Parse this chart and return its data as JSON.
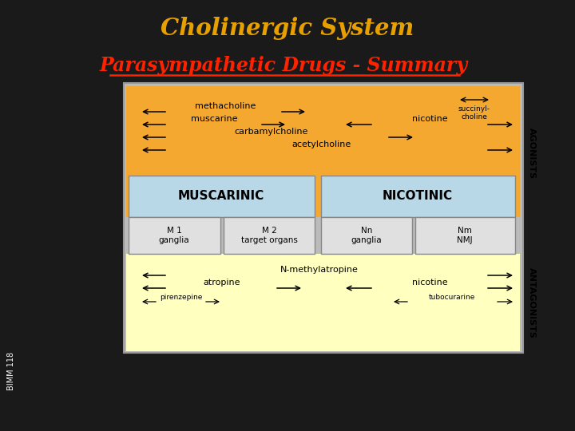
{
  "title": "Cholinergic System",
  "subtitle": "Parasympathetic Drugs - Summary",
  "title_color": "#E8A000",
  "subtitle_color": "#FF2200",
  "bg_color": "#1a1a1a",
  "outer_bg": "#bbbbbb",
  "orange_bg": "#F5A830",
  "blue_bg": "#B8D8E8",
  "yellow_bg": "#FFFFC0",
  "white_box_bg": "#E0E0E0",
  "bimm_label": "BIMM 118"
}
